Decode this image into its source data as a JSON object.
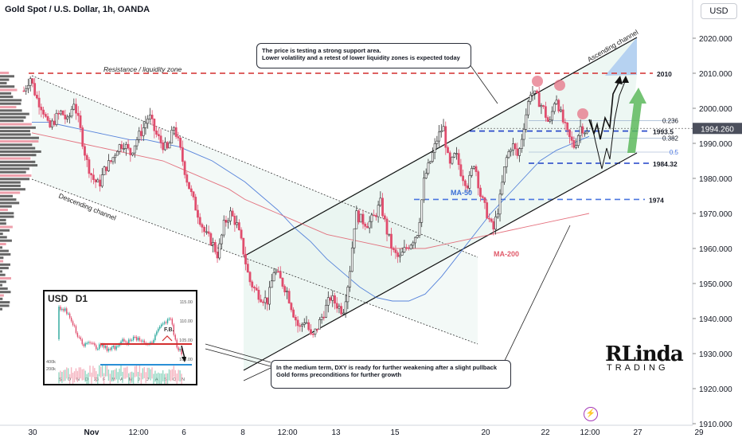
{
  "header": {
    "title": "Gold Spot / U.S. Dollar, 1h, OANDA",
    "currency": "USD"
  },
  "chart_data": {
    "type": "candlestick",
    "symbol": "Gold Spot / U.S. Dollar",
    "timeframe": "1h",
    "ylim": [
      1910,
      2025
    ],
    "y_ticks": [
      1910,
      1920,
      1930,
      1940,
      1950,
      1960,
      1970,
      1980,
      1990,
      2000,
      2010,
      2020
    ],
    "y_tick_labels": [
      "1910.000",
      "1920.000",
      "1930.000",
      "1940.000",
      "1950.000",
      "1960.000",
      "1970.000",
      "1980.000",
      "1990.000",
      "2000.000",
      "2010.000",
      "2020.000"
    ],
    "x_tick_labels": [
      "30",
      "Nov",
      "12:00",
      "6",
      "8",
      "12:00",
      "13",
      "15",
      "20",
      "22",
      "12:00",
      "27",
      "29"
    ],
    "last_price": 1994.26,
    "last_price_label": "1994.260",
    "price_path": [
      2005,
      2009,
      2003,
      2000,
      1994,
      1997,
      1999,
      1996,
      2002,
      1994,
      1985,
      1980,
      1978,
      1983,
      1985,
      1989,
      1990,
      1987,
      1991,
      1994,
      1998,
      1993,
      1990,
      1988,
      1995,
      1988,
      1980,
      1974,
      1969,
      1964,
      1962,
      1958,
      1967,
      1970,
      1967,
      1960,
      1951,
      1948,
      1946,
      1945,
      1954,
      1951,
      1948,
      1942,
      1937,
      1940,
      1934,
      1938,
      1942,
      1946,
      1944,
      1942,
      1952,
      1970,
      1968,
      1967,
      1969,
      1973,
      1965,
      1959,
      1957,
      1960,
      1962,
      1965,
      1980,
      1985,
      1991,
      1995,
      1983,
      1987,
      1981,
      1978,
      1985,
      1975,
      1970,
      1965,
      1973,
      1985,
      1990,
      1986,
      1996,
      2005,
      2003,
      2000,
      1995,
      2004,
      1997,
      1992,
      1989,
      1995,
      1993
    ],
    "series": [
      {
        "name": "MA-50",
        "color": "#3b6fd6",
        "values": [
          1996,
          1996,
          1995,
          1994,
          1993,
          1992,
          1991,
          1991,
          1990,
          1989,
          1987,
          1985,
          1982,
          1979,
          1975,
          1971,
          1966,
          1962,
          1957,
          1953,
          1949,
          1946,
          1945,
          1945,
          1947,
          1952,
          1958,
          1964,
          1970,
          1975,
          1980,
          1985,
          1988,
          1990,
          1992
        ]
      },
      {
        "name": "MA-200",
        "color": "#e05a6a",
        "values": [
          1993,
          1992,
          1991,
          1990,
          1989,
          1988,
          1987,
          1986,
          1985,
          1983,
          1981,
          1979,
          1977,
          1974,
          1972,
          1970,
          1968,
          1966,
          1964,
          1963,
          1962,
          1961,
          1960,
          1960,
          1960,
          1961,
          1962,
          1963,
          1964,
          1965,
          1966,
          1967,
          1968,
          1969,
          1970
        ]
      }
    ],
    "levels": [
      {
        "label": "2010",
        "value": 2010,
        "color": "#d32f2f",
        "style": "dashed"
      },
      {
        "label": "1993.5",
        "value": 1993.5,
        "color": "#1e40c8",
        "style": "dashed"
      },
      {
        "label": "1984.32",
        "value": 1984.32,
        "color": "#1e40c8",
        "style": "dashed"
      },
      {
        "label": "1974",
        "value": 1974,
        "color": "#4a76e0",
        "style": "dashed"
      }
    ],
    "fib_levels": [
      {
        "label": "0.236",
        "value": 1996.5
      },
      {
        "label": "0.382",
        "value": 1991.5
      },
      {
        "label": "0.5",
        "value": 1987.5
      }
    ],
    "annotations": {
      "resistance": "Resistance / liquidity zone",
      "descending": "Descending channel",
      "ascending": "Ascending channel",
      "ma50": "MA-50",
      "ma200": "MA-200"
    }
  },
  "callouts": {
    "top": [
      "The price is testing a strong support area.",
      "Lower volatility and a retest of lower liquidity zones is expected today"
    ],
    "bottom": [
      "In the medium term, DXY is ready for further weakening after a slight pullback",
      "Gold forms preconditions for further growth"
    ]
  },
  "inset": {
    "title": "USD",
    "timeframe_badge": "D1",
    "label_fb": "F.B.",
    "y_labels": [
      "115.00",
      "110.00",
      "105.00",
      "100.00"
    ],
    "vol_labels": [
      "400k",
      "200k"
    ],
    "x_labels": [
      "S",
      "O",
      "N",
      "D",
      "23",
      "F",
      "M",
      "A",
      "M",
      "J",
      "J",
      "A",
      "S",
      "O",
      "N"
    ]
  },
  "logo": {
    "line1": "RLinda",
    "line2": "TRADING"
  },
  "colors": {
    "up": "#26a69a",
    "down": "#e91e63",
    "up_body": "#ffffff",
    "candle_down": "#e04d6d"
  }
}
